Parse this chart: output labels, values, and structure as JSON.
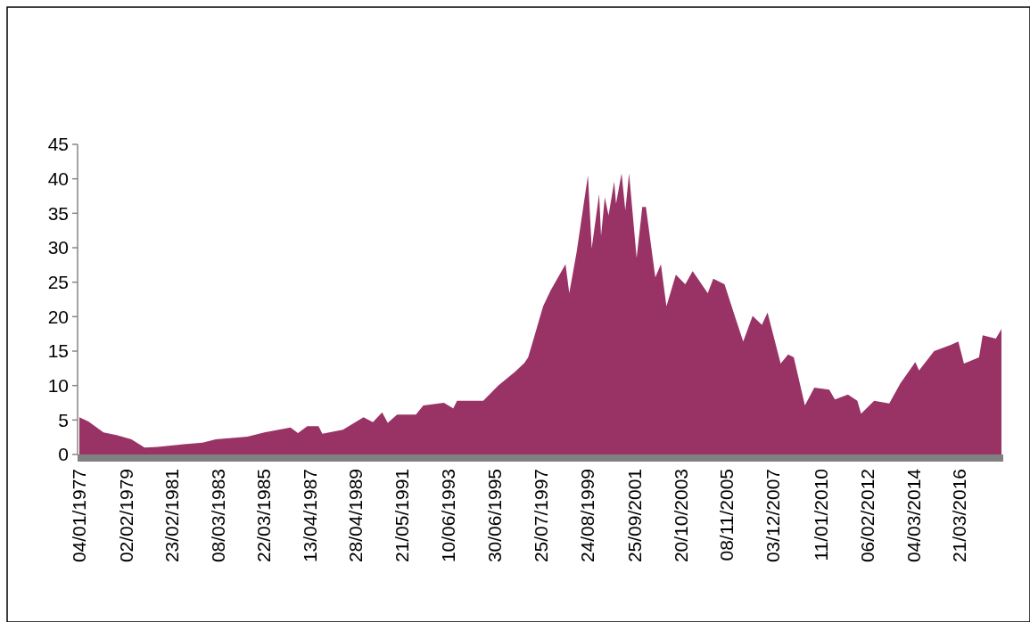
{
  "chart_data": {
    "type": "area",
    "color": "#993366",
    "x": [
      "1977-01-04",
      "1977-06",
      "1978-02",
      "1978-09",
      "1979-05",
      "1979-12",
      "1980-07",
      "1981-09",
      "1982-07",
      "1983-02",
      "1984-07",
      "1985-04",
      "1986-06",
      "1986-10",
      "1987-03",
      "1987-09",
      "1987-11",
      "1988-10",
      "1989-09",
      "1990-02",
      "1990-07",
      "1990-10",
      "1991-03",
      "1992-01",
      "1992-05",
      "1993-04",
      "1993-09",
      "1993-11",
      "1995-01",
      "1995-09",
      "1996-06",
      "1996-11",
      "1997-01",
      "1997-04",
      "1997-09",
      "1998-01",
      "1998-09",
      "1998-11",
      "1999-03",
      "1999-09",
      "1999-11",
      "2000-03",
      "2000-04",
      "2000-06",
      "2000-08",
      "2000-11",
      "2000-12",
      "2001-03",
      "2001-05",
      "2001-07",
      "2001-11",
      "2002-02",
      "2002-04",
      "2002-09",
      "2002-12",
      "2003-03",
      "2003-08",
      "2004-01",
      "2004-05",
      "2005-01",
      "2005-04",
      "2005-10",
      "2006-04",
      "2006-08",
      "2007-01",
      "2007-06",
      "2007-09",
      "2008-04",
      "2008-08",
      "2008-11",
      "2009-05",
      "2009-10",
      "2010-06",
      "2010-09",
      "2011-04",
      "2011-09",
      "2011-11",
      "2012-06",
      "2013-02",
      "2013-08",
      "2014-04",
      "2014-06",
      "2015-02",
      "2015-11",
      "2016-03",
      "2016-06",
      "2017-02",
      "2017-04",
      "2017-11",
      "2018-02"
    ],
    "values": [
      5.4,
      4.8,
      3.2,
      2.8,
      2.2,
      1.0,
      1.1,
      1.5,
      1.7,
      2.2,
      2.6,
      3.2,
      3.9,
      3.1,
      4.1,
      4.1,
      3.0,
      3.6,
      5.4,
      4.7,
      6.1,
      4.6,
      5.8,
      5.8,
      7.1,
      7.5,
      6.7,
      7.8,
      7.8,
      10.0,
      12.0,
      13.3,
      14.1,
      16.8,
      21.5,
      23.8,
      27.6,
      23.4,
      29.4,
      40.5,
      29.9,
      37.8,
      31.7,
      37.3,
      34.7,
      39.6,
      36.4,
      40.8,
      35.4,
      40.8,
      28.5,
      35.9,
      35.9,
      25.7,
      27.6,
      21.5,
      26.1,
      24.7,
      26.6,
      23.4,
      25.5,
      24.7,
      19.7,
      16.4,
      20.1,
      18.8,
      20.6,
      13.2,
      14.5,
      14.1,
      7.1,
      9.7,
      9.4,
      8.0,
      8.7,
      7.8,
      5.9,
      7.8,
      7.4,
      10.3,
      13.4,
      12.2,
      15.0,
      15.9,
      16.4,
      13.2,
      14.1,
      17.3,
      16.8,
      18.2
    ],
    "xlim": [
      "1977-01-04",
      "2018-02"
    ],
    "xticks": [
      {
        "value": "1977-01-04",
        "label": "04/01/1977"
      },
      {
        "value": "1979-02-02",
        "label": "02/02/1979"
      },
      {
        "value": "1981-02-23",
        "label": "23/02/1981"
      },
      {
        "value": "1983-03-08",
        "label": "08/03/1983"
      },
      {
        "value": "1985-03-22",
        "label": "22/03/1985"
      },
      {
        "value": "1987-04-13",
        "label": "13/04/1987"
      },
      {
        "value": "1989-04-28",
        "label": "28/04/1989"
      },
      {
        "value": "1991-05-21",
        "label": "21/05/1991"
      },
      {
        "value": "1993-06-10",
        "label": "10/06/1993"
      },
      {
        "value": "1995-06-30",
        "label": "30/06/1995"
      },
      {
        "value": "1997-07-25",
        "label": "25/07/1997"
      },
      {
        "value": "1999-08-24",
        "label": "24/08/1999"
      },
      {
        "value": "2001-09-25",
        "label": "25/09/2001"
      },
      {
        "value": "2003-10-20",
        "label": "20/10/2003"
      },
      {
        "value": "2005-11-08",
        "label": "08/11/2005"
      },
      {
        "value": "2007-12-03",
        "label": "03/12/2007"
      },
      {
        "value": "2010-01-11",
        "label": "11/01/2010"
      },
      {
        "value": "2012-02-06",
        "label": "06/02/2012"
      },
      {
        "value": "2014-03-04",
        "label": "04/03/2014"
      },
      {
        "value": "2016-03-21",
        "label": "21/03/2016"
      }
    ],
    "ylim": [
      0,
      45
    ],
    "yticks": [
      0,
      5,
      10,
      15,
      20,
      25,
      30,
      35,
      40,
      45
    ],
    "grid": false
  }
}
